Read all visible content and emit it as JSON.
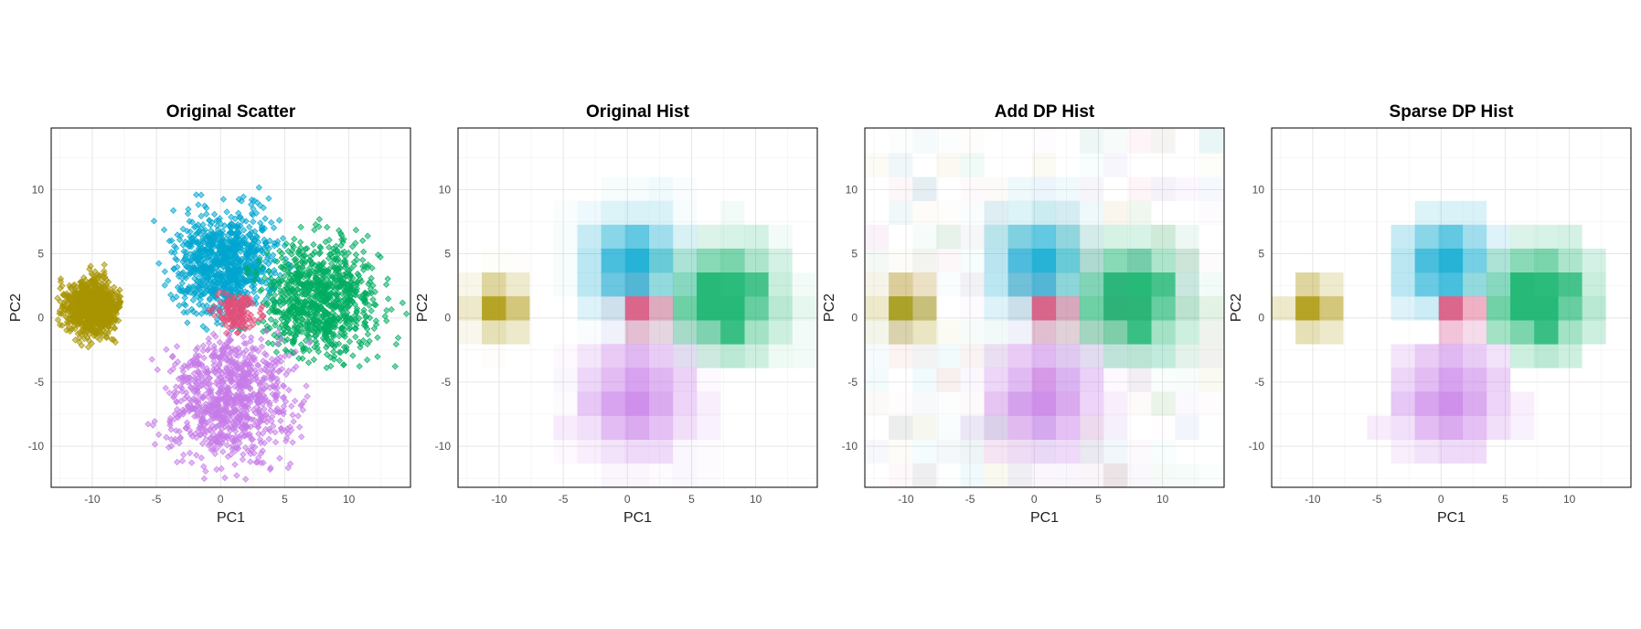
{
  "figure": {
    "xlabel": "PC1",
    "ylabel": "PC2",
    "x_ticks": [
      -10,
      -5,
      0,
      5,
      10
    ],
    "y_ticks": [
      -10,
      -5,
      0,
      5,
      10
    ],
    "xlim": [
      -13.2,
      14.8
    ],
    "ylim": [
      -13.2,
      14.8
    ],
    "grid": true
  },
  "colors": {
    "cluster_A": "#a89400",
    "cluster_B": "#00a6cf",
    "cluster_C": "#00ad60",
    "cluster_D": "#c77ce8",
    "cluster_E": "#e0507a"
  },
  "chart_data": [
    {
      "type": "scatter",
      "title": "Original Scatter",
      "xlabel": "PC1",
      "ylabel": "PC2",
      "xlim": [
        -13.2,
        14.8
      ],
      "ylim": [
        -13.2,
        14.8
      ],
      "series": [
        {
          "color": "#a89400",
          "center": [
            -10,
            0.8
          ],
          "spread": [
            1.1,
            1.1
          ],
          "n": 900,
          "range_x": [
            -12.8,
            -7.8
          ],
          "range_y": [
            -3.2,
            4.5
          ]
        },
        {
          "color": "#00a6cf",
          "center": [
            0.3,
            4.3
          ],
          "spread": [
            2.0,
            2.0
          ],
          "n": 900,
          "range_x": [
            -5.5,
            5.5
          ],
          "range_y": [
            -1,
            11
          ]
        },
        {
          "color": "#00ad60",
          "center": [
            7.7,
            1.4
          ],
          "spread": [
            2.2,
            2.3
          ],
          "n": 900,
          "range_x": [
            1,
            14.5
          ],
          "range_y": [
            -4.2,
            7.8
          ]
        },
        {
          "color": "#c77ce8",
          "center": [
            0.8,
            -6.3
          ],
          "spread": [
            2.4,
            2.5
          ],
          "n": 900,
          "range_x": [
            -8,
            7
          ],
          "range_y": [
            -13,
            -1
          ]
        },
        {
          "color": "#e0507a",
          "center": [
            1.3,
            0.4
          ],
          "spread": [
            0.9,
            0.7
          ],
          "n": 150,
          "range_x": [
            -1.5,
            3.5
          ],
          "range_y": [
            -1.2,
            2.2
          ]
        }
      ]
    },
    {
      "type": "heatmap",
      "title": "Original Hist",
      "xlabel": "PC1",
      "ylabel": "PC2",
      "bin_width": 1.86,
      "noise": 0,
      "sparse": false
    },
    {
      "type": "heatmap",
      "title": "Add DP Hist",
      "xlabel": "PC1",
      "ylabel": "PC2",
      "bin_width": 1.86,
      "noise": 0.06,
      "sparse": false
    },
    {
      "type": "heatmap",
      "title": "Sparse DP Hist",
      "xlabel": "PC1",
      "ylabel": "PC2",
      "bin_width": 1.86,
      "noise": 0,
      "sparse": true
    }
  ]
}
